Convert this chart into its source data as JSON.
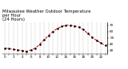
{
  "title": "Milwaukee Weather Outdoor Temperature\nper Hour\n(24 Hours)",
  "hours": [
    0,
    1,
    2,
    3,
    4,
    5,
    6,
    7,
    8,
    9,
    10,
    11,
    12,
    13,
    14,
    15,
    16,
    17,
    18,
    19,
    20,
    21,
    22,
    23
  ],
  "temps": [
    34,
    33,
    32,
    31,
    30,
    29,
    31,
    34,
    40,
    47,
    54,
    60,
    65,
    68,
    70,
    70,
    69,
    67,
    63,
    57,
    51,
    46,
    42,
    38
  ],
  "line_color": "#cc0000",
  "marker_color": "#000000",
  "bg_color": "#ffffff",
  "grid_color": "#888888",
  "ylim_min": 25,
  "ylim_max": 75,
  "ytick_values": [
    30,
    40,
    50,
    60,
    70
  ],
  "title_fontsize": 3.8,
  "tick_fontsize": 3.0,
  "line_width": 0.7,
  "marker_size": 1.5,
  "line_style": "--"
}
